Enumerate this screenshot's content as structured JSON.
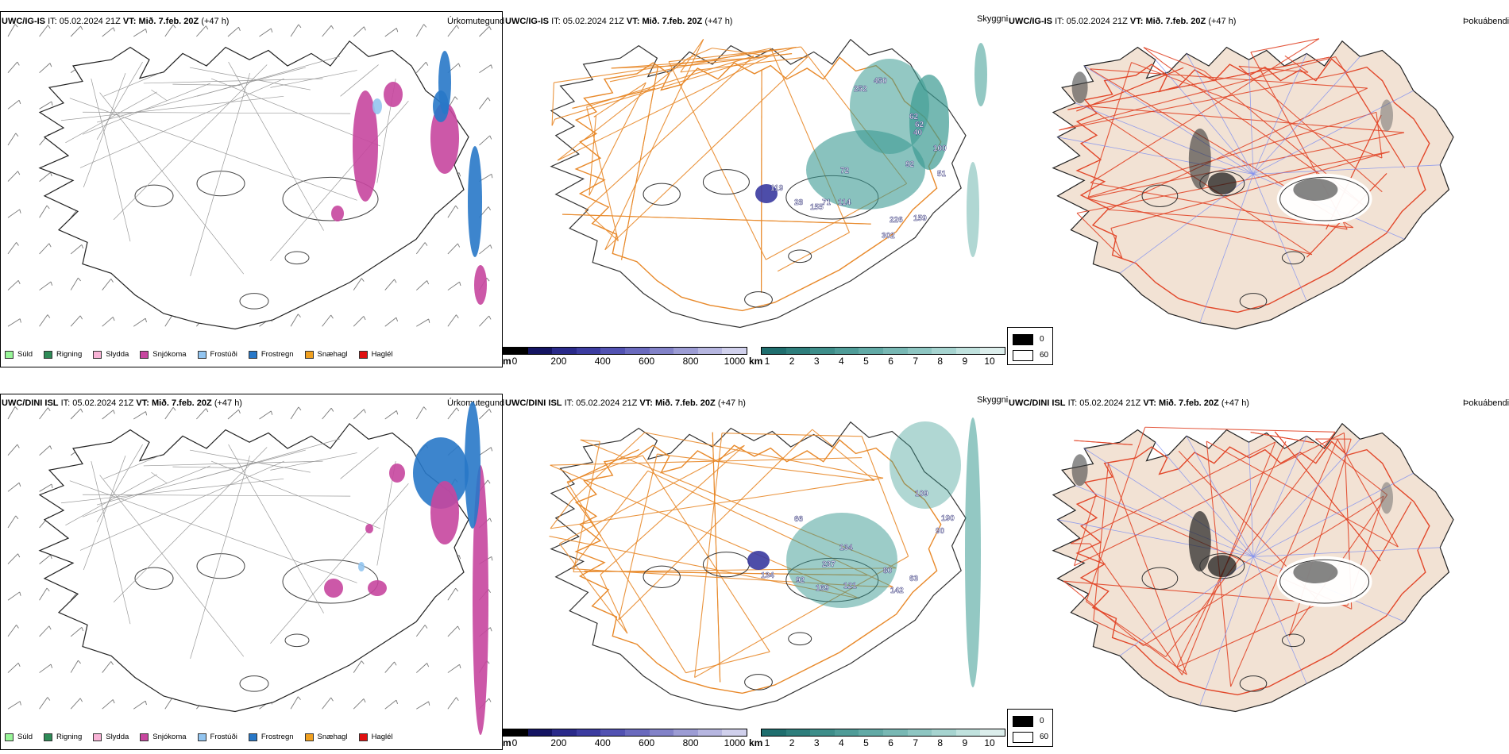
{
  "header": {
    "it_label": "IT:",
    "it_value": "05.02.2024 21Z",
    "vt_label": "VT:",
    "vt_value": "Mið. 7.feb. 20Z",
    "lead": "(+47 h)"
  },
  "rows": [
    {
      "model": "UWC/IG-IS"
    },
    {
      "model": "UWC/DINI ISL"
    }
  ],
  "panel_titles": {
    "precip": "Úrkomutegund",
    "visibility": "Skyggni",
    "fog": "Þokuábendi"
  },
  "precip_legend": [
    {
      "label": "Súld",
      "color": "#98f598"
    },
    {
      "label": "Rigning",
      "color": "#2e8b57"
    },
    {
      "label": "Slydda",
      "color": "#f8b3d6"
    },
    {
      "label": "Snjókoma",
      "color": "#c7469f"
    },
    {
      "label": "Frostúði",
      "color": "#93c5f0"
    },
    {
      "label": "Frostregn",
      "color": "#2878c8"
    },
    {
      "label": "Snæhagl",
      "color": "#f0a020"
    },
    {
      "label": "Haglél",
      "color": "#e01010"
    }
  ],
  "ceiling_scale": {
    "unit": "m",
    "ticks": [
      "0",
      "200",
      "400",
      "600",
      "800",
      "1000"
    ],
    "colors": [
      "#000000",
      "#141462",
      "#2a2a8a",
      "#3c3ca0",
      "#5252b2",
      "#6a6abe",
      "#8282c8",
      "#9c9cd4",
      "#b6b6e0",
      "#d0d0ec"
    ]
  },
  "visibility_scale": {
    "unit": "km",
    "ticks": [
      "1",
      "2",
      "3",
      "4",
      "5",
      "6",
      "7",
      "8",
      "9",
      "10"
    ],
    "colors": [
      "#1f6e6e",
      "#2e7e7c",
      "#3e8e8a",
      "#4f9c98",
      "#62aaa6",
      "#78b8b4",
      "#8ec6c2",
      "#a6d4d0",
      "#c0e2de",
      "#dceeec"
    ]
  },
  "cloud_key": {
    "values": [
      "0",
      "60"
    ],
    "colors": [
      "#000000",
      "#ffffff"
    ]
  },
  "visibility_labels": [
    [
      "450",
      "252",
      "62",
      "40",
      "100",
      "92",
      "51",
      "119",
      "71",
      "155",
      "114",
      "226",
      "159",
      "302",
      "28",
      "62",
      "72"
    ],
    [
      "109",
      "190",
      "90",
      "134",
      "237",
      "134",
      "80",
      "92",
      "169",
      "121",
      "142",
      "63",
      "66"
    ]
  ],
  "colors": {
    "snow": "#c7469f",
    "freezing_rain": "#2878c8",
    "freezing_drizzle": "#93c5f0",
    "teal": "#3a9a92",
    "ceiling": "#3a3aa0",
    "roads": "#e8892a",
    "land": "#f2e2d4",
    "roads_red": "#e2472a",
    "rivers": "#7d8ef0"
  }
}
